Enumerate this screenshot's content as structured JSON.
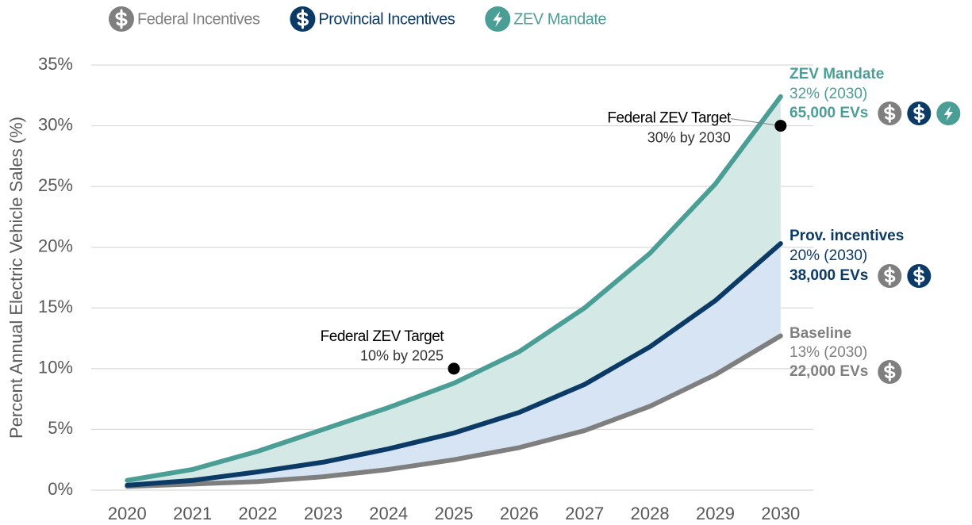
{
  "chart_data": {
    "type": "line",
    "ylabel": "Percent Annual Electric Vehicle Sales (%)",
    "x": [
      2020,
      2021,
      2022,
      2023,
      2024,
      2025,
      2026,
      2027,
      2028,
      2029,
      2030
    ],
    "xlim": [
      2019.45,
      2030.5
    ],
    "xticks": [
      2020,
      2021,
      2022,
      2023,
      2024,
      2025,
      2026,
      2027,
      2028,
      2029,
      2030
    ],
    "ylim": [
      0,
      35
    ],
    "yticks": [
      {
        "value": 0,
        "label": "0%"
      },
      {
        "value": 5,
        "label": "5%"
      },
      {
        "value": 10,
        "label": "10%"
      },
      {
        "value": 15,
        "label": "15%"
      },
      {
        "value": 20,
        "label": "20%"
      },
      {
        "value": 25,
        "label": "25%"
      },
      {
        "value": 30,
        "label": "30%"
      },
      {
        "value": 35,
        "label": "35%"
      }
    ],
    "grid": true,
    "legend": [
      {
        "name": "Federal Incentives",
        "color": "#7f7f7f",
        "icon": "dollar"
      },
      {
        "name": "Provincial Incentives",
        "color": "#0b3a66",
        "icon": "dollar"
      },
      {
        "name": "ZEV Mandate",
        "color": "#4a9e96",
        "icon": "bolt"
      }
    ],
    "series": [
      {
        "name": "Baseline",
        "color": "#7f7f7f",
        "values": [
          0.3,
          0.5,
          0.7,
          1.1,
          1.7,
          2.5,
          3.5,
          4.9,
          6.9,
          9.5,
          12.7
        ],
        "share": "13% (2030)",
        "evs": "22,000 EVs",
        "icons": [
          0
        ]
      },
      {
        "name": "Prov. incentives",
        "color": "#0b3a66",
        "values": [
          0.4,
          0.8,
          1.5,
          2.3,
          3.4,
          4.7,
          6.4,
          8.7,
          11.8,
          15.6,
          20.3
        ],
        "share": "20% (2030)",
        "evs": "38,000 EVs",
        "icons": [
          0,
          1
        ]
      },
      {
        "name": "ZEV Mandate",
        "color": "#4a9e96",
        "values": [
          0.8,
          1.7,
          3.2,
          5.0,
          6.8,
          8.8,
          11.4,
          15.0,
          19.5,
          25.2,
          32.4
        ],
        "share": "32% (2030)",
        "evs": "65,000 EVs",
        "icons": [
          0,
          1,
          2
        ]
      }
    ],
    "areas": [
      {
        "between": [
          0,
          1
        ],
        "color": "#d6e4f4"
      },
      {
        "between": [
          1,
          2
        ],
        "color": "#d4e8e5"
      }
    ],
    "annotations": [
      {
        "title": "Federal ZEV Target",
        "text": "10% by 2025",
        "x": 2025,
        "y": 10
      },
      {
        "title": "Federal ZEV Target",
        "text": "30% by 2030",
        "x": 2030,
        "y": 30
      }
    ]
  }
}
